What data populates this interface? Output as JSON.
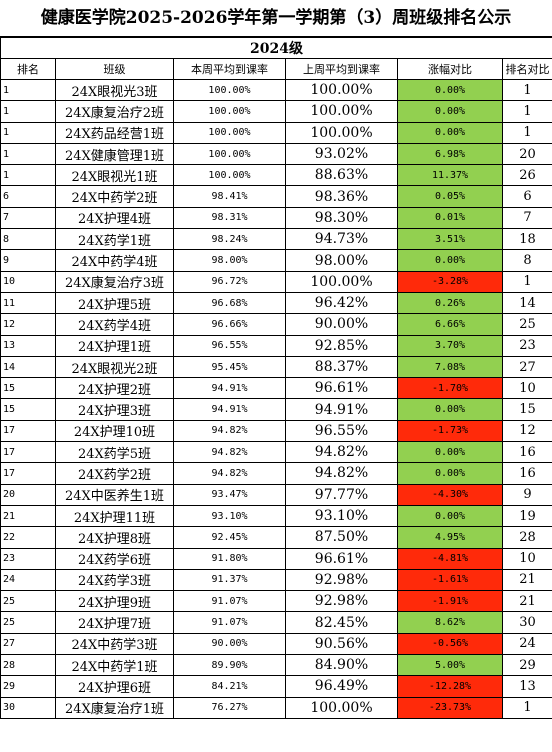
{
  "title": "健康医学院2025-2026学年第一学期第（3）周班级排名公示",
  "cohort": "2024级",
  "headers": {
    "rank": "排名",
    "class": "班级",
    "this_week": "本周平均到课率",
    "last_week": "上周平均到课率",
    "change": "涨幅对比",
    "rank_compare": "排名对比"
  },
  "colors": {
    "increase": "#92d050",
    "decrease": "#ff2a0a"
  },
  "rows": [
    {
      "rank": "1",
      "class": "24X眼视光3班",
      "this_week": "100.00%",
      "last_week": "100.00%",
      "change": "0.00%",
      "last_rank": "1",
      "trend": "up"
    },
    {
      "rank": "1",
      "class": "24X康复治疗2班",
      "this_week": "100.00%",
      "last_week": "100.00%",
      "change": "0.00%",
      "last_rank": "1",
      "trend": "up"
    },
    {
      "rank": "1",
      "class": "24X药品经营1班",
      "this_week": "100.00%",
      "last_week": "100.00%",
      "change": "0.00%",
      "last_rank": "1",
      "trend": "up"
    },
    {
      "rank": "1",
      "class": "24X健康管理1班",
      "this_week": "100.00%",
      "last_week": "93.02%",
      "change": "6.98%",
      "last_rank": "20",
      "trend": "up"
    },
    {
      "rank": "1",
      "class": "24X眼视光1班",
      "this_week": "100.00%",
      "last_week": "88.63%",
      "change": "11.37%",
      "last_rank": "26",
      "trend": "up"
    },
    {
      "rank": "6",
      "class": "24X中药学2班",
      "this_week": "98.41%",
      "last_week": "98.36%",
      "change": "0.05%",
      "last_rank": "6",
      "trend": "up"
    },
    {
      "rank": "7",
      "class": "24X护理4班",
      "this_week": "98.31%",
      "last_week": "98.30%",
      "change": "0.01%",
      "last_rank": "7",
      "trend": "up"
    },
    {
      "rank": "8",
      "class": "24X药学1班",
      "this_week": "98.24%",
      "last_week": "94.73%",
      "change": "3.51%",
      "last_rank": "18",
      "trend": "up"
    },
    {
      "rank": "9",
      "class": "24X中药学4班",
      "this_week": "98.00%",
      "last_week": "98.00%",
      "change": "0.00%",
      "last_rank": "8",
      "trend": "up"
    },
    {
      "rank": "10",
      "class": "24X康复治疗3班",
      "this_week": "96.72%",
      "last_week": "100.00%",
      "change": "-3.28%",
      "last_rank": "1",
      "trend": "down"
    },
    {
      "rank": "11",
      "class": "24X护理5班",
      "this_week": "96.68%",
      "last_week": "96.42%",
      "change": "0.26%",
      "last_rank": "14",
      "trend": "up"
    },
    {
      "rank": "12",
      "class": "24X药学4班",
      "this_week": "96.66%",
      "last_week": "90.00%",
      "change": "6.66%",
      "last_rank": "25",
      "trend": "up"
    },
    {
      "rank": "13",
      "class": "24X护理1班",
      "this_week": "96.55%",
      "last_week": "92.85%",
      "change": "3.70%",
      "last_rank": "23",
      "trend": "up"
    },
    {
      "rank": "14",
      "class": "24X眼视光2班",
      "this_week": "95.45%",
      "last_week": "88.37%",
      "change": "7.08%",
      "last_rank": "27",
      "trend": "up"
    },
    {
      "rank": "15",
      "class": "24X护理2班",
      "this_week": "94.91%",
      "last_week": "96.61%",
      "change": "-1.70%",
      "last_rank": "10",
      "trend": "down"
    },
    {
      "rank": "15",
      "class": "24X护理3班",
      "this_week": "94.91%",
      "last_week": "94.91%",
      "change": "0.00%",
      "last_rank": "15",
      "trend": "up"
    },
    {
      "rank": "17",
      "class": "24X护理10班",
      "this_week": "94.82%",
      "last_week": "96.55%",
      "change": "-1.73%",
      "last_rank": "12",
      "trend": "down"
    },
    {
      "rank": "17",
      "class": "24X药学5班",
      "this_week": "94.82%",
      "last_week": "94.82%",
      "change": "0.00%",
      "last_rank": "16",
      "trend": "up"
    },
    {
      "rank": "17",
      "class": "24X药学2班",
      "this_week": "94.82%",
      "last_week": "94.82%",
      "change": "0.00%",
      "last_rank": "16",
      "trend": "up"
    },
    {
      "rank": "20",
      "class": "24X中医养生1班",
      "this_week": "93.47%",
      "last_week": "97.77%",
      "change": "-4.30%",
      "last_rank": "9",
      "trend": "down"
    },
    {
      "rank": "21",
      "class": "24X护理11班",
      "this_week": "93.10%",
      "last_week": "93.10%",
      "change": "0.00%",
      "last_rank": "19",
      "trend": "up"
    },
    {
      "rank": "22",
      "class": "24X护理8班",
      "this_week": "92.45%",
      "last_week": "87.50%",
      "change": "4.95%",
      "last_rank": "28",
      "trend": "up"
    },
    {
      "rank": "23",
      "class": "24X药学6班",
      "this_week": "91.80%",
      "last_week": "96.61%",
      "change": "-4.81%",
      "last_rank": "10",
      "trend": "down"
    },
    {
      "rank": "24",
      "class": "24X药学3班",
      "this_week": "91.37%",
      "last_week": "92.98%",
      "change": "-1.61%",
      "last_rank": "21",
      "trend": "down"
    },
    {
      "rank": "25",
      "class": "24X护理9班",
      "this_week": "91.07%",
      "last_week": "92.98%",
      "change": "-1.91%",
      "last_rank": "21",
      "trend": "down"
    },
    {
      "rank": "25",
      "class": "24X护理7班",
      "this_week": "91.07%",
      "last_week": "82.45%",
      "change": "8.62%",
      "last_rank": "30",
      "trend": "up"
    },
    {
      "rank": "27",
      "class": "24X中药学3班",
      "this_week": "90.00%",
      "last_week": "90.56%",
      "change": "-0.56%",
      "last_rank": "24",
      "trend": "down"
    },
    {
      "rank": "28",
      "class": "24X中药学1班",
      "this_week": "89.90%",
      "last_week": "84.90%",
      "change": "5.00%",
      "last_rank": "29",
      "trend": "up"
    },
    {
      "rank": "29",
      "class": "24X护理6班",
      "this_week": "84.21%",
      "last_week": "96.49%",
      "change": "-12.28%",
      "last_rank": "13",
      "trend": "down"
    },
    {
      "rank": "30",
      "class": "24X康复治疗1班",
      "this_week": "76.27%",
      "last_week": "100.00%",
      "change": "-23.73%",
      "last_rank": "1",
      "trend": "down"
    }
  ]
}
